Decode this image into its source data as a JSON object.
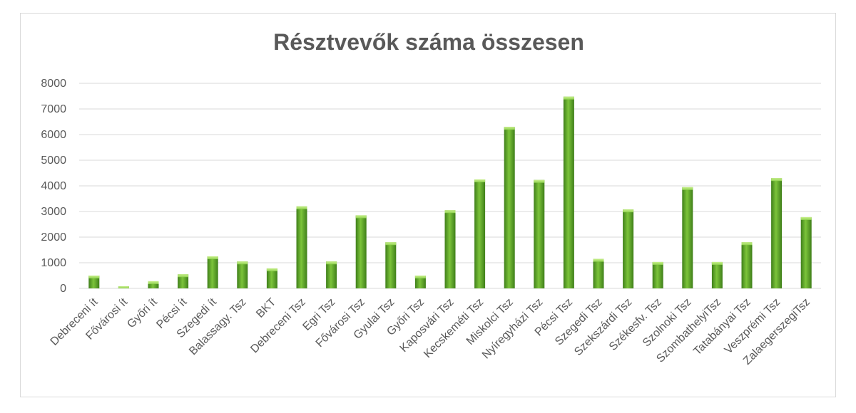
{
  "chart_data": {
    "type": "bar",
    "title": "Résztvevők száma összesen",
    "categories": [
      "Debreceni ít",
      "Fővárosi ít",
      "Győri ít",
      "Pécsi ít",
      "Szegedi ít",
      "Balassagy. Tsz",
      "BKT",
      "Debreceni Tsz",
      "Egri Tsz",
      "Fővárosi Tsz",
      "Gyulai Tsz",
      "Győri Tsz",
      "Kaposvári Tsz",
      "Kecskeméti Tsz",
      "Miskolci Tsz",
      "Nyíregyházi Tsz",
      "Pécsi Tsz",
      "Szegedi Tsz",
      "Szekszárdi Tsz",
      "Székesfv. Tsz",
      "Szolnoki Tsz",
      "SzombathelyiTsz",
      "Tatabányai Tsz",
      "Veszprémi Tsz",
      "ZalaegerszegiTsz"
    ],
    "values": [
      500,
      80,
      280,
      550,
      1250,
      1050,
      780,
      3200,
      1050,
      2850,
      1800,
      500,
      3050,
      4250,
      6300,
      4230,
      7480,
      1150,
      3080,
      1030,
      3950,
      1030,
      1800,
      4300,
      2780
    ],
    "ylim": [
      0,
      8000
    ],
    "yticks": [
      0,
      1000,
      2000,
      3000,
      4000,
      5000,
      6000,
      7000,
      8000
    ],
    "xlabel": "",
    "ylabel": "",
    "grid": true,
    "legend": "none",
    "colors": {
      "bar_dark": "#3f7f1a",
      "bar_mid": "#6fba2c",
      "bar_light": "#9fdc5c",
      "grid": "#d9d9d9",
      "text": "#595959"
    }
  }
}
